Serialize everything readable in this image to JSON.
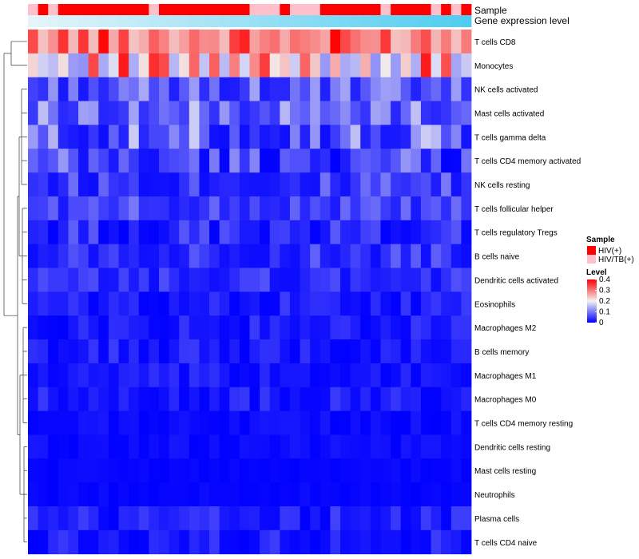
{
  "chart_data": {
    "type": "heatmap",
    "title": "",
    "annotation_labels": {
      "sample": "Sample",
      "gene_expression": "Gene expression level"
    },
    "rows": [
      "T cells CD8",
      "Monocytes",
      "NK cells activated",
      "Mast cells activated",
      "T cells gamma delta",
      "T cells CD4 memory activated",
      "NK cells resting",
      "T cells follicular helper",
      "T cells regulatory  Tregs",
      "B cells naive",
      "Dendritic cells activated",
      "Eosinophils",
      "Macrophages M2",
      "B cells memory",
      "Macrophages M1",
      "Macrophages M0",
      "T cells CD4 memory resting",
      "Dendritic cells resting",
      "Mast cells resting",
      "Neutrophils",
      "Plasma cells",
      "T cells CD4 naive"
    ],
    "num_samples": 44,
    "sample_groups": [
      "HIV/TB(+)",
      "HIV(+)",
      "HIV/TB(+)",
      "HIV(+)",
      "HIV(+)",
      "HIV(+)",
      "HIV(+)",
      "HIV(+)",
      "HIV(+)",
      "HIV(+)",
      "HIV(+)",
      "HIV(+)",
      "HIV/TB(+)",
      "HIV(+)",
      "HIV(+)",
      "HIV(+)",
      "HIV(+)",
      "HIV(+)",
      "HIV(+)",
      "HIV(+)",
      "HIV(+)",
      "HIV(+)",
      "HIV/TB(+)",
      "HIV/TB(+)",
      "HIV/TB(+)",
      "HIV(+)",
      "HIV/TB(+)",
      "HIV/TB(+)",
      "HIV/TB(+)",
      "HIV(+)",
      "HIV(+)",
      "HIV(+)",
      "HIV(+)",
      "HIV(+)",
      "HIV(+)",
      "HIV/TB(+)",
      "HIV(+)",
      "HIV(+)",
      "HIV(+)",
      "HIV(+)",
      "HIV/TB(+)",
      "HIV(+)",
      "HIV/TB(+)",
      "HIV(+)"
    ],
    "row_ranges": [
      [
        0.24,
        0.4
      ],
      [
        0.12,
        0.38
      ],
      [
        0.02,
        0.14
      ],
      [
        0.03,
        0.17
      ],
      [
        0.01,
        0.17
      ],
      [
        0.0,
        0.13
      ],
      [
        0.01,
        0.1
      ],
      [
        0.02,
        0.1
      ],
      [
        0.0,
        0.08
      ],
      [
        0.01,
        0.08
      ],
      [
        0.01,
        0.07
      ],
      [
        0.0,
        0.05
      ],
      [
        0.0,
        0.05
      ],
      [
        0.0,
        0.05
      ],
      [
        0.0,
        0.04
      ],
      [
        0.0,
        0.05
      ],
      [
        0.0,
        0.02
      ],
      [
        0.0,
        0.02
      ],
      [
        0.0,
        0.01
      ],
      [
        0.0,
        0.01
      ],
      [
        0.0,
        0.06
      ],
      [
        0.0,
        0.05
      ]
    ],
    "legend": {
      "sample_title": "Sample",
      "sample_entries": [
        {
          "label": "HIV(+)",
          "color": "#ff0000"
        },
        {
          "label": "HIV/TB(+)",
          "color": "#ffc0cb"
        }
      ],
      "level_title": "Level",
      "level_ticks": [
        "0.4",
        "0.3",
        "0.2",
        "0.1",
        "0"
      ],
      "level_range": [
        0,
        0.4
      ]
    },
    "colors": {
      "low": "#0000ff",
      "mid": "#f2f2f2",
      "high": "#ff0000",
      "expression_start": "#e6f4fa",
      "expression_end": "#4fcdf0"
    }
  }
}
